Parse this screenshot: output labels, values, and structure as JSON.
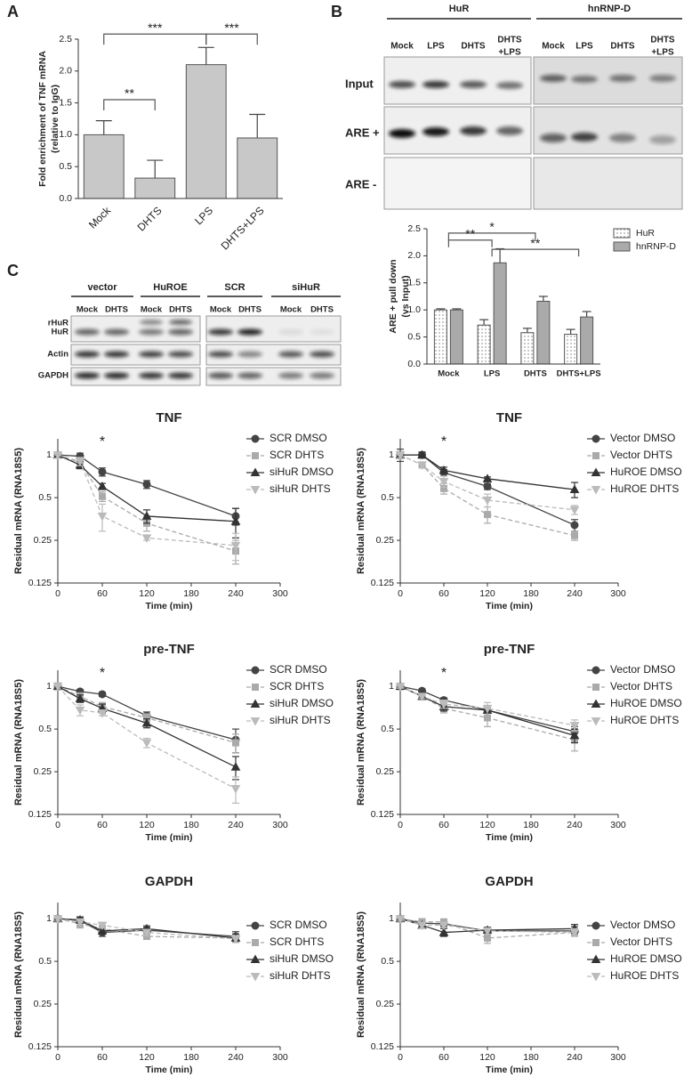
{
  "panels": [
    "A",
    "B",
    "C"
  ],
  "blot_b": {
    "groups": [
      {
        "name": "HuR",
        "lanes": [
          [
            "Mock"
          ],
          [
            "LPS"
          ],
          [
            "DHTS"
          ],
          [
            "DHTS",
            "+LPS"
          ]
        ]
      },
      {
        "name": "hnRNP-D",
        "lanes": [
          [
            "Mock"
          ],
          [
            "LPS"
          ],
          [
            "DHTS"
          ],
          [
            "DHTS",
            "+LPS"
          ]
        ]
      }
    ],
    "rows": [
      "Input",
      "ARE +",
      "ARE -"
    ]
  },
  "blot_c": {
    "groups": [
      {
        "name": "vector",
        "lanes": [
          "Mock",
          "DHTS"
        ]
      },
      {
        "name": "HuROE",
        "lanes": [
          "Mock",
          "DHTS"
        ]
      },
      {
        "name": "SCR",
        "lanes": [
          "Mock",
          "DHTS"
        ]
      },
      {
        "name": "siHuR",
        "lanes": [
          "Mock",
          "DHTS"
        ]
      }
    ],
    "rows": [
      [
        "rHuR",
        "HuR"
      ],
      [
        "Actin"
      ],
      [
        "GAPDH"
      ]
    ]
  },
  "chart_data": [
    {
      "type": "bar",
      "ylabel": [
        "Fold enrichment of TNF mRNA",
        "(relative to IgG)"
      ],
      "categories": [
        "Mock",
        "DHTS",
        "LPS",
        "DHTS+LPS"
      ],
      "values": [
        1.0,
        0.32,
        2.1,
        0.95
      ],
      "errors": [
        0.22,
        0.28,
        0.27,
        0.37
      ],
      "color": "#c8c8c8",
      "ylim": [
        0,
        2.5
      ],
      "yticks": [
        {
          "value": 0,
          "label": "0.0"
        },
        0.5,
        {
          "value": 1,
          "label": "1.0"
        },
        1.5,
        {
          "value": 2,
          "label": "2.0"
        },
        2.5
      ],
      "significance": [
        {
          "text": "**",
          "between": [
            0,
            1
          ],
          "y": 1.55
        },
        {
          "text": "***",
          "between": [
            0,
            2
          ],
          "y": 2.58
        },
        {
          "text": "***",
          "between": [
            2,
            3
          ],
          "y": 2.58
        }
      ]
    },
    {
      "type": "grouped-bar",
      "ylabel": [
        "ARE + pull down",
        "(vs Input)"
      ],
      "categories": [
        "Mock",
        "LPS",
        "DHTS",
        "DHTS+LPS"
      ],
      "series": [
        {
          "name": "HuR",
          "color": "#ffffff",
          "hatch": "dots",
          "values": [
            1.0,
            0.72,
            0.58,
            0.55
          ],
          "errors": [
            0.02,
            0.1,
            0.08,
            0.09
          ]
        },
        {
          "name": "hnRNP-D",
          "color": "#aaaaaa",
          "values": [
            1.0,
            1.87,
            1.16,
            0.87
          ],
          "errors": [
            0.02,
            0.26,
            0.09,
            0.1
          ]
        }
      ],
      "ylim": [
        0,
        2.5
      ],
      "yticks": [
        {
          "value": 0,
          "label": "0.0"
        },
        0.5,
        {
          "value": 1,
          "label": "1.0"
        },
        1.5,
        {
          "value": 2,
          "label": "2.0"
        },
        2.5
      ],
      "significance": [
        {
          "text": "*",
          "between": [
            0,
            2
          ],
          "y": 2.42
        },
        {
          "text": "**",
          "between": [
            0,
            1
          ],
          "y": 2.29
        },
        {
          "text": "**",
          "between": [
            1,
            3
          ],
          "y": 2.12
        }
      ]
    },
    {
      "type": "line",
      "title": "TNF",
      "xlabel": "Time (min)",
      "ylabel": "Residual mRNA (RNA18S5)",
      "log_base": 2,
      "legend": "upper-right",
      "x": [
        0,
        30,
        60,
        120,
        240
      ],
      "xlim": [
        0,
        300
      ],
      "xticks": [
        0,
        60,
        120,
        180,
        240,
        300
      ],
      "ylim": [
        0.125,
        1.3
      ],
      "yticks": [
        0.125,
        0.25,
        0.5,
        1
      ],
      "annotations": [
        {
          "text": "*",
          "x": 60
        }
      ],
      "series": [
        {
          "name": "SCR DMSO",
          "color": "#444444",
          "marker": "circle",
          "line": "solid",
          "values": [
            1.0,
            0.98,
            0.76,
            0.62,
            0.37
          ],
          "errors": [
            0.03,
            0.05,
            0.05,
            0.04,
            0.05
          ]
        },
        {
          "name": "SCR DHTS",
          "color": "#aaaaaa",
          "marker": "square",
          "line": "dashed",
          "values": [
            1.0,
            0.88,
            0.51,
            0.33,
            0.21
          ],
          "errors": [
            0.05,
            0.08,
            0.04,
            0.04,
            0.04
          ]
        },
        {
          "name": "siHuR DMSO",
          "color": "#333333",
          "marker": "triangle-up",
          "line": "solid",
          "values": [
            1.0,
            0.85,
            0.6,
            0.37,
            0.34
          ],
          "errors": [
            0.04,
            0.05,
            0.03,
            0.04,
            0.08
          ]
        },
        {
          "name": "siHuR DHTS",
          "color": "#bbbbbb",
          "marker": "triangle-down",
          "line": "dashed",
          "values": [
            1.0,
            0.9,
            0.37,
            0.26,
            0.23
          ],
          "errors": [
            0.05,
            0.06,
            0.08,
            0.01,
            0.05
          ]
        }
      ]
    },
    {
      "type": "line",
      "title": "TNF",
      "xlabel": "Time (min)",
      "ylabel": "Residual mRNA (RNA18S5)",
      "log_base": 2,
      "legend": "upper-right",
      "x": [
        0,
        30,
        60,
        120,
        240
      ],
      "xlim": [
        0,
        300
      ],
      "xticks": [
        0,
        60,
        120,
        180,
        240,
        300
      ],
      "ylim": [
        0.125,
        1.3
      ],
      "yticks": [
        0.125,
        0.25,
        0.5,
        1
      ],
      "annotations": [
        {
          "text": "*",
          "x": 60
        }
      ],
      "series": [
        {
          "name": "Vector DMSO",
          "color": "#444444",
          "marker": "circle",
          "line": "solid",
          "values": [
            1.0,
            1.0,
            0.75,
            0.6,
            0.32
          ],
          "errors": [
            0.1,
            0.04,
            0.04,
            0.03,
            0.03
          ]
        },
        {
          "name": "Vector DHTS",
          "color": "#aaaaaa",
          "marker": "square",
          "line": "dashed",
          "values": [
            1.0,
            0.85,
            0.58,
            0.38,
            0.27
          ],
          "errors": [
            0.06,
            0.04,
            0.05,
            0.05,
            0.02
          ]
        },
        {
          "name": "HuROE DMSO",
          "color": "#333333",
          "marker": "triangle-up",
          "line": "solid",
          "values": [
            1.0,
            1.0,
            0.78,
            0.68,
            0.57
          ],
          "errors": [
            0.04,
            0.05,
            0.04,
            0.02,
            0.07
          ]
        },
        {
          "name": "HuROE DHTS",
          "color": "#bbbbbb",
          "marker": "triangle-down",
          "line": "dashed",
          "values": [
            1.0,
            0.85,
            0.65,
            0.48,
            0.41
          ],
          "errors": [
            0.05,
            0.04,
            0.06,
            0.05,
            0.03
          ]
        }
      ]
    },
    {
      "type": "line",
      "title": "pre-TNF",
      "xlabel": "Time (min)",
      "ylabel": "Residual mRNA (RNA18S5)",
      "log_base": 2,
      "legend": "upper-right",
      "x": [
        0,
        30,
        60,
        120,
        240
      ],
      "xlim": [
        0,
        300
      ],
      "xticks": [
        0,
        60,
        120,
        180,
        240,
        300
      ],
      "ylim": [
        0.125,
        1.3
      ],
      "yticks": [
        0.125,
        0.25,
        0.5,
        1
      ],
      "annotations": [
        {
          "text": "*",
          "x": 60
        }
      ],
      "series": [
        {
          "name": "SCR DMSO",
          "color": "#444444",
          "marker": "circle",
          "line": "solid",
          "values": [
            1.0,
            0.92,
            0.88,
            0.62,
            0.42
          ],
          "errors": [
            0.03,
            0.03,
            0.03,
            0.04,
            0.08
          ]
        },
        {
          "name": "SCR DHTS",
          "color": "#aaaaaa",
          "marker": "square",
          "line": "dashed",
          "values": [
            1.0,
            0.85,
            0.72,
            0.6,
            0.4
          ],
          "errors": [
            0.05,
            0.05,
            0.05,
            0.04,
            0.06
          ]
        },
        {
          "name": "siHuR DMSO",
          "color": "#333333",
          "marker": "triangle-up",
          "line": "solid",
          "values": [
            1.0,
            0.82,
            0.7,
            0.55,
            0.27
          ],
          "errors": [
            0.04,
            0.05,
            0.05,
            0.04,
            0.05
          ]
        },
        {
          "name": "siHuR DHTS",
          "color": "#bbbbbb",
          "marker": "triangle-down",
          "line": "dashed",
          "values": [
            1.0,
            0.68,
            0.65,
            0.4,
            0.19
          ],
          "errors": [
            0.06,
            0.06,
            0.03,
            0.03,
            0.04
          ]
        }
      ]
    },
    {
      "type": "line",
      "title": "pre-TNF",
      "xlabel": "Time (min)",
      "ylabel": "Residual mRNA (RNA18S5)",
      "log_base": 2,
      "legend": "upper-right",
      "x": [
        0,
        30,
        60,
        120,
        240
      ],
      "xlim": [
        0,
        300
      ],
      "xticks": [
        0,
        60,
        120,
        180,
        240,
        300
      ],
      "ylim": [
        0.125,
        1.3
      ],
      "yticks": [
        0.125,
        0.25,
        0.5,
        1
      ],
      "annotations": [
        {
          "text": "*",
          "x": 60
        }
      ],
      "series": [
        {
          "name": "Vector DMSO",
          "color": "#444444",
          "marker": "circle",
          "line": "solid",
          "values": [
            1.0,
            0.93,
            0.8,
            0.68,
            0.48
          ],
          "errors": [
            0.03,
            0.03,
            0.03,
            0.05,
            0.04
          ]
        },
        {
          "name": "Vector DHTS",
          "color": "#aaaaaa",
          "marker": "square",
          "line": "dashed",
          "values": [
            1.0,
            0.85,
            0.7,
            0.6,
            0.42
          ],
          "errors": [
            0.04,
            0.04,
            0.05,
            0.08,
            0.07
          ]
        },
        {
          "name": "HuROE DMSO",
          "color": "#333333",
          "marker": "triangle-up",
          "line": "solid",
          "values": [
            1.0,
            0.85,
            0.72,
            0.68,
            0.45
          ],
          "errors": [
            0.04,
            0.04,
            0.05,
            0.05,
            0.05
          ]
        },
        {
          "name": "HuROE DHTS",
          "color": "#bbbbbb",
          "marker": "triangle-down",
          "line": "dashed",
          "values": [
            1.0,
            0.85,
            0.75,
            0.7,
            0.53
          ],
          "errors": [
            0.03,
            0.03,
            0.05,
            0.07,
            0.05
          ]
        }
      ]
    },
    {
      "type": "line",
      "title": "GAPDH",
      "xlabel": "Time (min)",
      "ylabel": "Residual mRNA (RNA18S5)",
      "log_base": 2,
      "legend": "lower-right",
      "x": [
        0,
        30,
        60,
        120,
        240
      ],
      "xlim": [
        0,
        300
      ],
      "xticks": [
        0,
        60,
        120,
        180,
        240,
        300
      ],
      "ylim": [
        0.125,
        1.3
      ],
      "yticks": [
        0.125,
        0.25,
        0.5,
        1
      ],
      "series": [
        {
          "name": "SCR DMSO",
          "color": "#444444",
          "marker": "circle",
          "line": "solid",
          "values": [
            1.0,
            0.97,
            0.8,
            0.83,
            0.75
          ],
          "errors": [
            0.04,
            0.05,
            0.05,
            0.04,
            0.06
          ]
        },
        {
          "name": "SCR DHTS",
          "color": "#aaaaaa",
          "marker": "square",
          "line": "dashed",
          "values": [
            1.0,
            0.92,
            0.85,
            0.75,
            0.73
          ],
          "errors": [
            0.05,
            0.06,
            0.04,
            0.03,
            0.05
          ]
        },
        {
          "name": "siHuR DMSO",
          "color": "#333333",
          "marker": "triangle-up",
          "line": "solid",
          "values": [
            1.0,
            0.98,
            0.82,
            0.85,
            0.73
          ],
          "errors": [
            0.03,
            0.05,
            0.04,
            0.04,
            0.05
          ]
        },
        {
          "name": "siHuR DHTS",
          "color": "#bbbbbb",
          "marker": "triangle-down",
          "line": "dashed",
          "values": [
            1.0,
            0.95,
            0.9,
            0.8,
            0.72
          ],
          "errors": [
            0.04,
            0.04,
            0.04,
            0.04,
            0.04
          ]
        }
      ]
    },
    {
      "type": "line",
      "title": "GAPDH",
      "xlabel": "Time (min)",
      "ylabel": "Residual mRNA (RNA18S5)",
      "log_base": 2,
      "legend": "lower-right",
      "x": [
        0,
        30,
        60,
        120,
        240
      ],
      "xlim": [
        0,
        300
      ],
      "xticks": [
        0,
        60,
        120,
        180,
        240,
        300
      ],
      "ylim": [
        0.125,
        1.3
      ],
      "yticks": [
        0.125,
        0.25,
        0.5,
        1
      ],
      "series": [
        {
          "name": "Vector DMSO",
          "color": "#444444",
          "marker": "circle",
          "line": "solid",
          "values": [
            1.0,
            0.93,
            0.92,
            0.82,
            0.82
          ],
          "errors": [
            0.04,
            0.04,
            0.04,
            0.04,
            0.06
          ]
        },
        {
          "name": "Vector DHTS",
          "color": "#aaaaaa",
          "marker": "square",
          "line": "dashed",
          "values": [
            1.0,
            0.95,
            0.95,
            0.73,
            0.8
          ],
          "errors": [
            0.04,
            0.05,
            0.04,
            0.06,
            0.05
          ]
        },
        {
          "name": "HuROE DMSO",
          "color": "#333333",
          "marker": "triangle-up",
          "line": "solid",
          "values": [
            1.0,
            0.9,
            0.8,
            0.83,
            0.85
          ],
          "errors": [
            0.03,
            0.04,
            0.05,
            0.04,
            0.06
          ]
        },
        {
          "name": "HuROE DHTS",
          "color": "#bbbbbb",
          "marker": "triangle-down",
          "line": "dashed",
          "values": [
            1.0,
            0.9,
            0.9,
            0.82,
            0.8
          ],
          "errors": [
            0.04,
            0.04,
            0.04,
            0.04,
            0.05
          ]
        }
      ]
    }
  ]
}
